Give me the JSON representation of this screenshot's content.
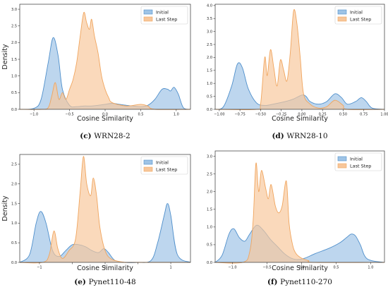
{
  "colors": {
    "initial_fill": "#9ec3e6",
    "initial_line": "#4f8fcb",
    "last_fill": "#f7c79b",
    "last_line": "#f0a55e"
  },
  "chart_data": [
    {
      "type": "area",
      "caption_label": "(c)",
      "caption_text": "WRN28-2",
      "xlabel": "Cosine Similarity",
      "ylabel": "Density",
      "xlim": [
        -1.2,
        1.2
      ],
      "ylim": [
        0,
        3.15
      ],
      "xticks": [
        -1.0,
        -0.5,
        0.0,
        0.5,
        1.0
      ],
      "xtick_labels": [
        "−1.0",
        "−0.5",
        "0.0",
        "0.5",
        "1.0"
      ],
      "yticks": [
        0.0,
        0.5,
        1.0,
        1.5,
        2.0,
        2.5,
        3.0
      ],
      "ytick_labels": [
        "0.0",
        "0.5",
        "1.0",
        "1.5",
        "2.0",
        "2.5",
        "3.0"
      ],
      "legend_position": "top-right",
      "series": [
        {
          "name": "Initial",
          "x": [
            -1.2,
            -1.0,
            -0.9,
            -0.8,
            -0.73,
            -0.66,
            -0.6,
            -0.5,
            -0.4,
            -0.3,
            -0.2,
            -0.1,
            0.0,
            0.1,
            0.2,
            0.3,
            0.4,
            0.5,
            0.6,
            0.7,
            0.8,
            0.88,
            0.92,
            0.97,
            1.03,
            1.1,
            1.2
          ],
          "y": [
            0.0,
            0.03,
            0.3,
            1.4,
            2.15,
            1.6,
            0.6,
            0.12,
            0.08,
            0.1,
            0.1,
            0.12,
            0.15,
            0.18,
            0.15,
            0.12,
            0.1,
            0.08,
            0.12,
            0.3,
            0.6,
            0.6,
            0.55,
            0.66,
            0.45,
            0.05,
            0.0
          ]
        },
        {
          "name": "Last Step",
          "x": [
            -1.2,
            -0.9,
            -0.8,
            -0.75,
            -0.7,
            -0.65,
            -0.6,
            -0.55,
            -0.5,
            -0.45,
            -0.4,
            -0.35,
            -0.3,
            -0.26,
            -0.22,
            -0.19,
            -0.15,
            -0.1,
            -0.05,
            0.0,
            0.05,
            0.1,
            0.3,
            0.5,
            0.6,
            0.7,
            1.2
          ],
          "y": [
            0.0,
            0.0,
            0.05,
            0.4,
            0.8,
            0.3,
            0.5,
            0.3,
            0.6,
            0.9,
            1.4,
            2.2,
            2.9,
            2.6,
            2.4,
            2.7,
            2.2,
            1.7,
            1.0,
            0.6,
            0.35,
            0.2,
            0.1,
            0.15,
            0.1,
            0.0,
            0.0
          ]
        }
      ]
    },
    {
      "type": "area",
      "caption_label": "(d)",
      "caption_text": "WRN28-10",
      "xlabel": "Cosine Similarity",
      "ylabel": "",
      "xlim": [
        -1.05,
        1.0
      ],
      "ylim": [
        0,
        4.05
      ],
      "xticks": [
        -1.0,
        -0.75,
        -0.5,
        -0.25,
        0.0,
        0.25,
        0.5,
        0.75,
        1.0
      ],
      "xtick_labels": [
        "−1.00",
        "−0.75",
        "−0.50",
        "−0.25",
        "0.00",
        "0.25",
        "0.50",
        "0.75",
        "1.00"
      ],
      "yticks": [
        0.0,
        0.5,
        1.0,
        1.5,
        2.0,
        2.5,
        3.0,
        3.5,
        4.0
      ],
      "ytick_labels": [
        "0.0",
        "0.5",
        "1.0",
        "1.5",
        "2.0",
        "2.5",
        "3.0",
        "3.5",
        "4.0"
      ],
      "legend_position": "top-right",
      "series": [
        {
          "name": "Initial",
          "x": [
            -1.05,
            -0.95,
            -0.85,
            -0.78,
            -0.72,
            -0.65,
            -0.55,
            -0.45,
            -0.35,
            -0.2,
            -0.1,
            0.0,
            0.05,
            0.1,
            0.2,
            0.3,
            0.4,
            0.48,
            0.55,
            0.65,
            0.72,
            0.78,
            0.85,
            1.0
          ],
          "y": [
            0.0,
            0.1,
            0.9,
            1.75,
            1.6,
            0.8,
            0.25,
            0.15,
            0.2,
            0.3,
            0.4,
            0.55,
            0.5,
            0.3,
            0.2,
            0.3,
            0.6,
            0.45,
            0.2,
            0.3,
            0.45,
            0.3,
            0.05,
            0.0
          ]
        },
        {
          "name": "Last Step",
          "x": [
            -1.05,
            -0.55,
            -0.5,
            -0.45,
            -0.42,
            -0.38,
            -0.34,
            -0.3,
            -0.26,
            -0.22,
            -0.18,
            -0.14,
            -0.1,
            -0.06,
            -0.02,
            0.02,
            0.1,
            0.2,
            0.3,
            0.4,
            0.5,
            0.55,
            1.0
          ],
          "y": [
            0.0,
            0.0,
            0.2,
            2.0,
            1.3,
            2.3,
            1.6,
            0.9,
            1.9,
            1.5,
            1.1,
            2.2,
            3.8,
            3.3,
            2.0,
            0.6,
            0.2,
            0.05,
            0.1,
            0.35,
            0.15,
            0.0,
            0.0
          ]
        }
      ]
    },
    {
      "type": "area",
      "caption_label": "(e)",
      "caption_text": "Pynet110-48",
      "xlabel": "Cosine Similarity",
      "ylabel": "Density",
      "xlim": [
        -1.3,
        1.3
      ],
      "ylim": [
        0,
        2.75
      ],
      "xticks": [
        -1.0,
        -0.5,
        0.0,
        0.5,
        1.0
      ],
      "xtick_labels": [
        "−1",
        "",
        "0",
        "",
        "1"
      ],
      "yticks": [
        0.0,
        0.5,
        1.0,
        1.5,
        2.0,
        2.5
      ],
      "ytick_labels": [
        "0.0",
        "0.5",
        "1.0",
        "1.5",
        "2.0",
        "2.5"
      ],
      "legend_position": "top-right",
      "series": [
        {
          "name": "Initial",
          "x": [
            -1.3,
            -1.15,
            -1.05,
            -0.98,
            -0.9,
            -0.8,
            -0.7,
            -0.6,
            -0.5,
            -0.4,
            -0.3,
            -0.2,
            -0.1,
            -0.02,
            0.05,
            0.15,
            0.3,
            0.5,
            0.7,
            0.8,
            0.9,
            0.95,
            1.0,
            1.1,
            1.3
          ],
          "y": [
            0.0,
            0.2,
            1.0,
            1.3,
            1.0,
            0.3,
            0.15,
            0.3,
            0.45,
            0.45,
            0.4,
            0.3,
            0.25,
            0.35,
            0.25,
            0.05,
            0.0,
            0.0,
            0.05,
            0.5,
            1.2,
            1.5,
            1.2,
            0.2,
            0.0
          ]
        },
        {
          "name": "Last Step",
          "x": [
            -1.3,
            -0.95,
            -0.85,
            -0.78,
            -0.72,
            -0.65,
            -0.55,
            -0.45,
            -0.38,
            -0.33,
            -0.28,
            -0.22,
            -0.18,
            -0.13,
            -0.08,
            0.0,
            0.1,
            0.3,
            0.4,
            1.3
          ],
          "y": [
            0.0,
            0.0,
            0.2,
            0.8,
            0.35,
            0.1,
            0.3,
            0.6,
            1.8,
            2.7,
            2.0,
            1.7,
            2.15,
            1.7,
            0.9,
            0.3,
            0.08,
            0.0,
            0.0,
            0.0
          ]
        }
      ]
    },
    {
      "type": "area",
      "caption_label": "(f)",
      "caption_text": "Pynet110-270",
      "xlabel": "Cosine Similarity",
      "ylabel": "",
      "xlim": [
        -1.25,
        1.2
      ],
      "ylim": [
        0,
        3.15
      ],
      "xticks": [
        -1.0,
        -0.5,
        0.0,
        0.5,
        1.0
      ],
      "xtick_labels": [
        "−1.0",
        "−0.5",
        "0.0",
        "0.5",
        "1.0"
      ],
      "yticks": [
        0.0,
        0.5,
        1.0,
        1.5,
        2.0,
        2.5,
        3.0
      ],
      "ytick_labels": [
        "0.0",
        "0.5",
        "1.0",
        "1.5",
        "2.0",
        "2.5",
        "3.0"
      ],
      "legend_position": "top-right",
      "series": [
        {
          "name": "Initial",
          "x": [
            -1.25,
            -1.15,
            -1.05,
            -0.98,
            -0.9,
            -0.82,
            -0.75,
            -0.65,
            -0.55,
            -0.45,
            -0.35,
            -0.25,
            -0.15,
            -0.05,
            0.05,
            0.2,
            0.4,
            0.55,
            0.65,
            0.72,
            0.78,
            0.85,
            0.95,
            1.2
          ],
          "y": [
            0.0,
            0.2,
            0.8,
            0.95,
            0.7,
            0.6,
            0.8,
            1.05,
            0.9,
            0.65,
            0.45,
            0.25,
            0.12,
            0.08,
            0.12,
            0.25,
            0.4,
            0.55,
            0.7,
            0.8,
            0.75,
            0.5,
            0.1,
            0.0
          ]
        },
        {
          "name": "Last Step",
          "x": [
            -1.25,
            -0.85,
            -0.75,
            -0.7,
            -0.66,
            -0.62,
            -0.58,
            -0.52,
            -0.48,
            -0.44,
            -0.38,
            -0.33,
            -0.28,
            -0.22,
            -0.18,
            -0.13,
            -0.08,
            0.0,
            0.1,
            0.2,
            1.2
          ],
          "y": [
            0.0,
            0.0,
            0.3,
            1.2,
            2.8,
            2.0,
            2.6,
            2.1,
            1.8,
            2.2,
            1.6,
            1.4,
            1.6,
            2.3,
            1.1,
            0.5,
            0.25,
            0.12,
            0.05,
            0.0,
            0.0
          ]
        }
      ]
    }
  ]
}
